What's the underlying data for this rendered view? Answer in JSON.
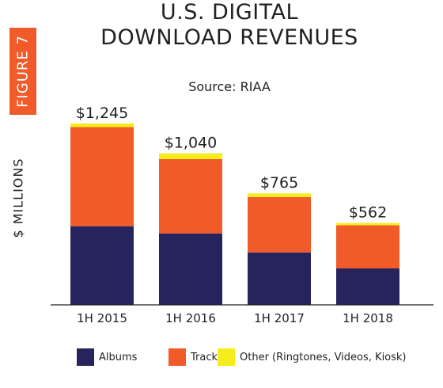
{
  "figure_label": "FIGURE 7",
  "chart_data": {
    "type": "bar",
    "stacked": true,
    "title_line1": "U.S. DIGITAL",
    "title_line2": "DOWNLOAD REVENUES",
    "subtitle": "Source: RIAA",
    "xlabel": "",
    "ylabel": "$ MILLIONS",
    "categories": [
      "1H 2015",
      "1H 2016",
      "1H 2017",
      "1H 2018"
    ],
    "totals": [
      1245,
      1040,
      765,
      562
    ],
    "total_labels": [
      "$1,245",
      "$1,040",
      "$765",
      "$562"
    ],
    "ylim": [
      0,
      1250
    ],
    "grid": false,
    "legend_position": "bottom",
    "series": [
      {
        "name": "Albums",
        "color": "#27235d",
        "values": [
          540,
          490,
          360,
          250
        ]
      },
      {
        "name": "Tracks",
        "color": "#f15a29",
        "values": [
          680,
          510,
          380,
          296
        ]
      },
      {
        "name": "Other (Ringtones, Videos, Kiosk)",
        "color": "#f7ec1b",
        "values": [
          25,
          40,
          25,
          16
        ]
      }
    ]
  }
}
